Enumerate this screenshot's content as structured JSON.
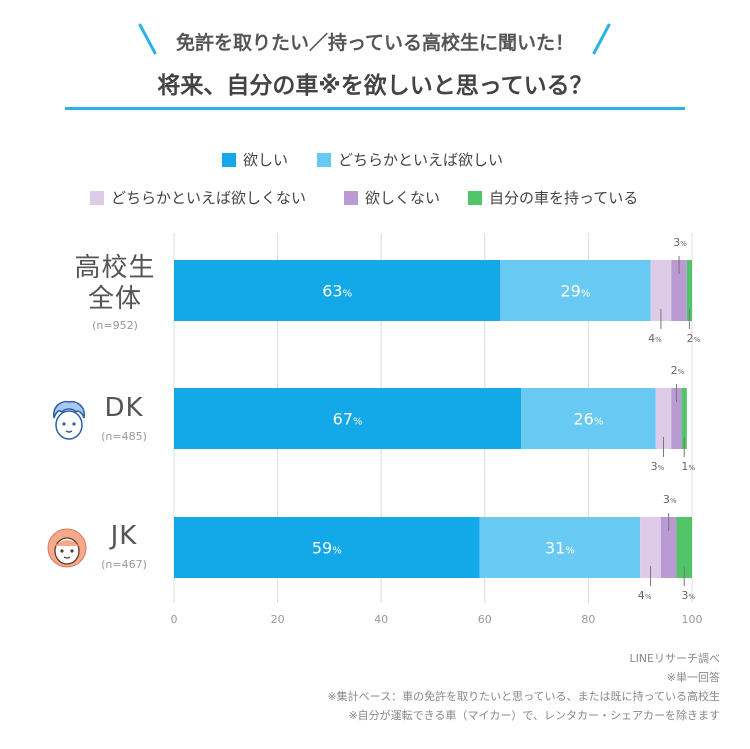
{
  "header": {
    "subtitle": "免許を取りたい／持っている高校生に聞いた！",
    "title": "将来、自分の車※を欲しいと思っている？"
  },
  "legend": [
    {
      "label": "欲しい",
      "color": "#13a8e8"
    },
    {
      "label": "どちらかといえば欲しい",
      "color": "#68c9f3"
    },
    {
      "label": "どちらかといえば欲しくない",
      "color": "#ddcbe8"
    },
    {
      "label": "欲しくない",
      "color": "#b99ad3"
    },
    {
      "label": "自分の車を持っている",
      "color": "#52c569"
    }
  ],
  "rows": [
    {
      "label_lines": [
        "高校生",
        "全体"
      ],
      "n": "(n=952)",
      "icon": "none"
    },
    {
      "label_lines": [
        "DK"
      ],
      "n": "(n=485)",
      "icon": "boy-face-icon"
    },
    {
      "label_lines": [
        "JK"
      ],
      "n": "(n=467)",
      "icon": "girl-face-icon"
    }
  ],
  "chart_data": {
    "type": "bar",
    "orientation": "horizontal",
    "stacked": true,
    "categories": [
      "高校生全体",
      "DK",
      "JK"
    ],
    "series": [
      {
        "name": "欲しい",
        "values": [
          63,
          67,
          59
        ]
      },
      {
        "name": "どちらかといえば欲しい",
        "values": [
          29,
          26,
          31
        ]
      },
      {
        "name": "どちらかといえば欲しくない",
        "values": [
          4,
          3,
          4
        ]
      },
      {
        "name": "欲しくない",
        "values": [
          3,
          2,
          3
        ]
      },
      {
        "name": "自分の車を持っている",
        "values": [
          2,
          1,
          3
        ]
      }
    ],
    "unit_suffix": "%",
    "xlim": [
      0,
      100
    ],
    "xticks": [
      "0",
      "20",
      "40",
      "60",
      "80",
      "100"
    ],
    "grid": true,
    "legend_position": "top"
  },
  "notes": [
    "LINEリサーチ調べ",
    "※単一回答",
    "※集計ベース：車の免許を取りたいと思っている、または既に持っている高校生",
    "※自分が運転できる車（マイカー）で、レンタカー・シェアカーを除きます"
  ]
}
